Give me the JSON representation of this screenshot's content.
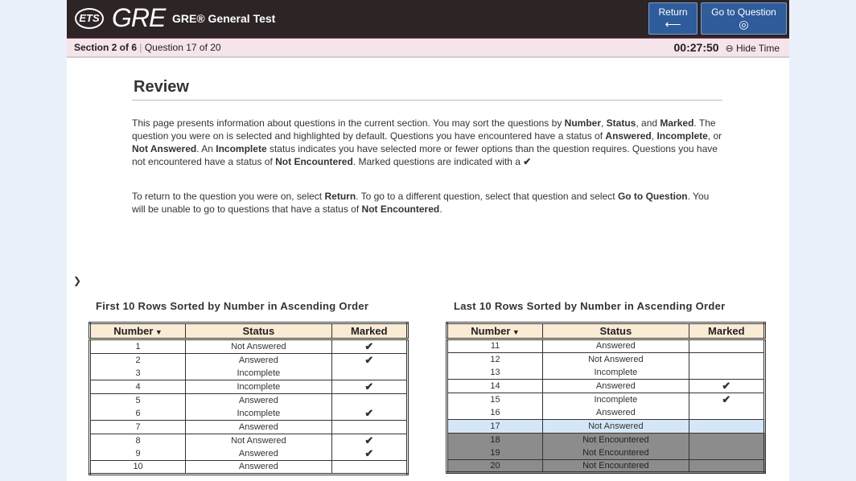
{
  "header": {
    "ets_logo": "ETS",
    "gre_logo": "GRE",
    "title": "GRE® General Test",
    "return_label": "Return",
    "return_icon": "arrow-left-icon",
    "goto_label": "Go to Question",
    "goto_icon": "target-icon"
  },
  "subheader": {
    "section": "Section 2 of 6",
    "question": "Question 17 of 20",
    "timer": "00:27:50",
    "hide_time": "Hide Time"
  },
  "review": {
    "title": "Review",
    "p1": [
      {
        "t": "This page presents information about questions in the current section. You may sort the questions by "
      },
      {
        "b": "Number"
      },
      {
        "t": ", "
      },
      {
        "b": "Status"
      },
      {
        "t": ", and "
      },
      {
        "b": "Marked"
      },
      {
        "t": ". The question you were on is selected and highlighted by default. Questions you have encountered have a status of "
      },
      {
        "b": "Answered"
      },
      {
        "t": ", "
      },
      {
        "b": "Incomplete"
      },
      {
        "t": ", or "
      },
      {
        "b": "Not Answered"
      },
      {
        "t": ". An "
      },
      {
        "b": "Incomplete"
      },
      {
        "t": " status indicates you have selected more or fewer options than the question requires. Questions you have not encountered have a status of "
      },
      {
        "b": "Not Encountered"
      },
      {
        "t": ". Marked questions are indicated with a "
      },
      {
        "b": "✔"
      }
    ],
    "p2": [
      {
        "t": "To return to the question you were on, select "
      },
      {
        "b": "Return"
      },
      {
        "t": ". To go to a different question, select that question and select "
      },
      {
        "b": "Go to Question"
      },
      {
        "t": ". You will be unable to go to questions that have a status of "
      },
      {
        "b": "Not Encountered"
      },
      {
        "t": "."
      }
    ]
  },
  "tables": [
    {
      "caption": "First 10 Rows Sorted by Number in Ascending Order",
      "headers": [
        "Number",
        "Status",
        "Marked"
      ],
      "rows": [
        [
          "1",
          "Not Answered",
          true
        ],
        [
          "2",
          "Answered",
          true
        ],
        [
          "3",
          "Incomplete",
          false
        ],
        [
          "4",
          "Incomplete",
          true
        ],
        [
          "5",
          "Answered",
          false
        ],
        [
          "6",
          "Incomplete",
          true
        ],
        [
          "7",
          "Answered",
          false
        ],
        [
          "8",
          "Not Answered",
          true
        ],
        [
          "9",
          "Answered",
          true
        ],
        [
          "10",
          "Answered",
          false
        ]
      ]
    },
    {
      "caption": "Last 10 Rows Sorted by Number in Ascending Order",
      "headers": [
        "Number",
        "Status",
        "Marked"
      ],
      "rows": [
        [
          "11",
          "Answered",
          false
        ],
        [
          "12",
          "Not Answered",
          false
        ],
        [
          "13",
          "Incomplete",
          false
        ],
        [
          "14",
          "Answered",
          true
        ],
        [
          "15",
          "Incomplete",
          true
        ],
        [
          "16",
          "Answered",
          false
        ],
        [
          "17",
          "Not Answered",
          false
        ],
        [
          "18",
          "Not Encountered",
          false
        ],
        [
          "19",
          "Not Encountered",
          false
        ],
        [
          "20",
          "Not Encountered",
          false
        ]
      ]
    }
  ],
  "selected_question": "17",
  "colors": {
    "header": "#2d2426",
    "button": "#2f5c9a",
    "selected_row": "#d5e6f7",
    "not_encountered_row": "#8c8c8c",
    "table_header": "#faebd5"
  }
}
